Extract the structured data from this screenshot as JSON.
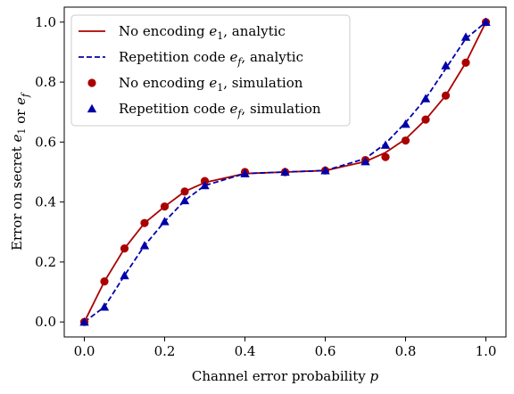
{
  "chart_data": {
    "type": "line",
    "xlabel": "Channel error probability p",
    "ylabel": "Error on secret e1 or ef",
    "xlim": [
      -0.05,
      1.05
    ],
    "ylim": [
      -0.05,
      1.05
    ],
    "xticks": [
      0.0,
      0.2,
      0.4,
      0.6,
      0.8,
      1.0
    ],
    "yticks": [
      0.0,
      0.2,
      0.4,
      0.6,
      0.8,
      1.0
    ],
    "xtick_labels": [
      "0.0",
      "0.2",
      "0.4",
      "0.6",
      "0.8",
      "1.0"
    ],
    "ytick_labels": [
      "0.0",
      "0.2",
      "0.4",
      "0.6",
      "0.8",
      "1.0"
    ],
    "grid": false,
    "legend_position": "upper-left",
    "series": [
      {
        "name": "No encoding e1, analytic",
        "style": "solid-line",
        "color": "#aa0000",
        "x": [
          0.0,
          0.05,
          0.1,
          0.15,
          0.2,
          0.25,
          0.3,
          0.4,
          0.5,
          0.6,
          0.7,
          0.75,
          0.8,
          0.85,
          0.9,
          0.95,
          1.0
        ],
        "y": [
          0.0,
          0.135,
          0.245,
          0.33,
          0.385,
          0.435,
          0.465,
          0.495,
          0.5,
          0.505,
          0.535,
          0.565,
          0.61,
          0.675,
          0.755,
          0.865,
          1.0
        ]
      },
      {
        "name": "Repetition code ef, analytic",
        "style": "dashed-line",
        "color": "#0000aa",
        "x": [
          0.0,
          0.05,
          0.1,
          0.15,
          0.2,
          0.25,
          0.3,
          0.4,
          0.5,
          0.6,
          0.7,
          0.75,
          0.8,
          0.85,
          0.9,
          0.95,
          1.0
        ],
        "y": [
          0.0,
          0.05,
          0.155,
          0.255,
          0.335,
          0.405,
          0.455,
          0.495,
          0.5,
          0.505,
          0.545,
          0.595,
          0.665,
          0.745,
          0.845,
          0.945,
          1.0
        ]
      },
      {
        "name": "No encoding e1, simulation",
        "style": "circle-marker",
        "color": "#aa0000",
        "x": [
          0.0,
          0.05,
          0.1,
          0.15,
          0.2,
          0.25,
          0.3,
          0.4,
          0.5,
          0.6,
          0.7,
          0.75,
          0.8,
          0.85,
          0.9,
          0.95,
          1.0
        ],
        "y": [
          0.0,
          0.135,
          0.245,
          0.33,
          0.385,
          0.435,
          0.47,
          0.5,
          0.5,
          0.505,
          0.54,
          0.55,
          0.605,
          0.675,
          0.755,
          0.865,
          1.0
        ]
      },
      {
        "name": "Repetition code ef, simulation",
        "style": "triangle-marker",
        "color": "#0000aa",
        "x": [
          0.0,
          0.05,
          0.1,
          0.15,
          0.2,
          0.25,
          0.3,
          0.4,
          0.5,
          0.6,
          0.7,
          0.75,
          0.8,
          0.85,
          0.9,
          0.95,
          1.0
        ],
        "y": [
          0.0,
          0.05,
          0.155,
          0.255,
          0.335,
          0.405,
          0.455,
          0.495,
          0.5,
          0.505,
          0.535,
          0.59,
          0.66,
          0.745,
          0.855,
          0.95,
          1.0
        ]
      }
    ],
    "legend": [
      {
        "prefix": "No encoding ",
        "sym": "e",
        "sub": "1",
        "suffix": ", analytic"
      },
      {
        "prefix": "Repetition code ",
        "sym": "e",
        "sub": "f",
        "suffix": ", analytic"
      },
      {
        "prefix": "No encoding ",
        "sym": "e",
        "sub": "1",
        "suffix": ", simulation"
      },
      {
        "prefix": "Repetition code ",
        "sym": "e",
        "sub": "f",
        "suffix": ", simulation"
      }
    ]
  }
}
